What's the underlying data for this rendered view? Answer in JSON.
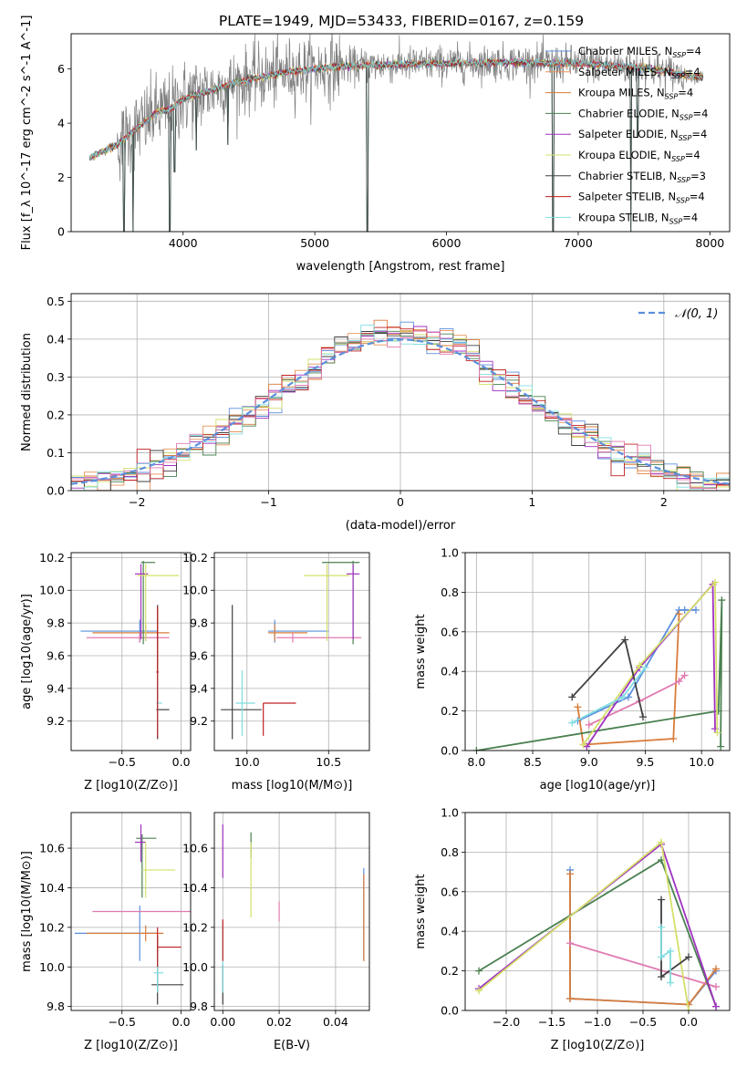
{
  "figure_title": "PLATE=1949, MJD=53433, FIBERID=0167, z=0.159",
  "colors": {
    "Chabrier MILES": "#5b8fdc",
    "Salpeter MILES": "#e8935a",
    "Kroupa MILES": "#d97c3a",
    "Chabrier ELODIE": "#4a8050",
    "Salpeter ELODIE": "#a032c0",
    "Kroupa ELODIE": "#d4e06a",
    "Chabrier STELIB": "#404040",
    "Salpeter STELIB": "#c02020",
    "Kroupa STELIB": "#80dde0",
    "Pink": "#e07ab0",
    "gauss": "#5b8fdc"
  },
  "chart_data": [
    {
      "id": "spectrum",
      "type": "line",
      "title": "PLATE=1949, MJD=53433, FIBERID=0167, z=0.159",
      "xlabel": "wavelength [Angstrom, rest frame]",
      "ylabel": "Flux [f_λ 10^-17 erg cm^-2 s^-1 A^-1]",
      "xlim": [
        3150,
        8150
      ],
      "ylim": [
        0,
        7.3
      ],
      "xticks": [
        4000,
        5000,
        6000,
        7000,
        8000
      ],
      "yticks": [
        0,
        2,
        4,
        6
      ],
      "legend_position": "right",
      "grid": false,
      "legend": [
        {
          "label": "Chabrier MILES, N",
          "sub": "SSP",
          "tail": "=4",
          "key": "Chabrier MILES"
        },
        {
          "label": "Salpeter MILES, N",
          "sub": "SSP",
          "tail": "=4",
          "key": "Salpeter MILES"
        },
        {
          "label": "Kroupa MILES, N",
          "sub": "SSP",
          "tail": "=4",
          "key": "Kroupa MILES"
        },
        {
          "label": "Chabrier ELODIE, N",
          "sub": "SSP",
          "tail": "=4",
          "key": "Chabrier ELODIE"
        },
        {
          "label": "Salpeter ELODIE, N",
          "sub": "SSP",
          "tail": "=4",
          "key": "Salpeter ELODIE"
        },
        {
          "label": "Kroupa ELODIE, N",
          "sub": "SSP",
          "tail": "=4",
          "key": "Kroupa ELODIE"
        },
        {
          "label": "Chabrier STELIB, N",
          "sub": "SSP",
          "tail": "=3",
          "key": "Chabrier STELIB"
        },
        {
          "label": "Salpeter STELIB, N",
          "sub": "SSP",
          "tail": "=4",
          "key": "Salpeter STELIB"
        },
        {
          "label": "Kroupa STELIB, N",
          "sub": "SSP",
          "tail": "=4",
          "key": "Kroupa STELIB"
        }
      ],
      "continuum": [
        [
          3290,
          2.7
        ],
        [
          3400,
          3.0
        ],
        [
          3500,
          3.2
        ],
        [
          3600,
          3.6
        ],
        [
          3700,
          4.0
        ],
        [
          3800,
          4.4
        ],
        [
          3900,
          4.5
        ],
        [
          4000,
          4.9
        ],
        [
          4200,
          5.2
        ],
        [
          4400,
          5.5
        ],
        [
          4600,
          5.7
        ],
        [
          4800,
          5.9
        ],
        [
          5000,
          6.0
        ],
        [
          5200,
          6.1
        ],
        [
          5500,
          6.15
        ],
        [
          6000,
          6.2
        ],
        [
          6500,
          6.25
        ],
        [
          7000,
          6.2
        ],
        [
          7500,
          6.05
        ],
        [
          7900,
          5.7
        ]
      ],
      "dips": [
        [
          3550,
          0.0
        ],
        [
          3620,
          0.0
        ],
        [
          3900,
          0.0
        ],
        [
          3935,
          2.2
        ],
        [
          4100,
          3.0
        ],
        [
          4340,
          3.2
        ],
        [
          5400,
          0.0
        ],
        [
          6810,
          0.0
        ],
        [
          7400,
          0.0
        ],
        [
          7450,
          3.5
        ]
      ]
    },
    {
      "id": "residuals",
      "type": "step",
      "xlabel": "(data-model)/error",
      "ylabel": "Normed distribution",
      "xlim": [
        -2.5,
        2.5
      ],
      "ylim": [
        0,
        0.52
      ],
      "xticks": [
        -2,
        -1,
        0,
        1,
        2
      ],
      "yticks": [
        0.0,
        0.1,
        0.2,
        0.3,
        0.4,
        0.5
      ],
      "grid": true,
      "legend_position": "top-right",
      "legend_label": "𝒩(0, 1)",
      "bin_width": 0.1
    },
    {
      "id": "age-vs-Z",
      "type": "errorbar",
      "xlabel": "Z [log10(Z/Z⊙)]",
      "ylabel": "age  [log10(age/yr)]",
      "xlim": [
        -0.93,
        0.08
      ],
      "ylim": [
        9.02,
        10.23
      ],
      "xticks": [
        -0.5,
        0.0
      ],
      "yticks": [
        9.2,
        9.4,
        9.6,
        9.8,
        10.0,
        10.2
      ],
      "grid": true,
      "points": [
        {
          "key": "Chabrier MILES",
          "x": -0.35,
          "xerr": [
            0.5,
            0.15
          ],
          "y": 9.75,
          "yerr": [
            0.07,
            0.07
          ]
        },
        {
          "key": "Kroupa MILES",
          "x": -0.3,
          "xerr": [
            0.45,
            0.2
          ],
          "y": 9.74,
          "yerr": [
            0.05,
            0.05
          ]
        },
        {
          "key": "Pink",
          "x": -0.35,
          "xerr": [
            0.45,
            0.25
          ],
          "y": 9.71,
          "yerr": [
            0.03,
            0.03
          ]
        },
        {
          "key": "Chabrier ELODIE",
          "x": -0.32,
          "xerr": [
            0.02,
            0.1
          ],
          "y": 10.17,
          "yerr": [
            0.5,
            0.01
          ]
        },
        {
          "key": "Salpeter ELODIE",
          "x": -0.34,
          "xerr": [
            0.05,
            0.06
          ],
          "y": 10.1,
          "yerr": [
            0.4,
            0.06
          ]
        },
        {
          "key": "Kroupa ELODIE",
          "x": -0.3,
          "xerr": [
            0.07,
            0.28
          ],
          "y": 10.09,
          "yerr": [
            0.4,
            0.07
          ]
        },
        {
          "key": "Chabrier STELIB",
          "x": -0.2,
          "xerr": [
            0.01,
            0.1
          ],
          "y": 9.27,
          "yerr": [
            0.18,
            0.64
          ]
        },
        {
          "key": "Kroupa STELIB",
          "x": -0.2,
          "xerr": [
            0.01,
            0.04
          ],
          "y": 9.31,
          "yerr": [
            0.2,
            0.2
          ]
        },
        {
          "key": "Salpeter STELIB",
          "x": -0.2,
          "xerr": [
            0.01,
            0.01
          ],
          "y": 9.5,
          "yerr": [
            0.4,
            0.4
          ]
        }
      ]
    },
    {
      "id": "age-vs-mass",
      "type": "errorbar",
      "xlabel": "mass [log10(M/M⊙)]",
      "ylabel": "",
      "xlim": [
        9.8,
        10.75
      ],
      "ylim": [
        9.02,
        10.23
      ],
      "xticks": [
        10.0,
        10.5
      ],
      "yticks": [
        9.2,
        9.4,
        9.6,
        9.8,
        10.0,
        10.2
      ],
      "grid": true,
      "points": [
        {
          "key": "Chabrier MILES",
          "x": 10.17,
          "xerr": [
            0.04,
            0.33
          ],
          "y": 9.75,
          "yerr": [
            0.07,
            0.07
          ]
        },
        {
          "key": "Kroupa MILES",
          "x": 10.17,
          "xerr": [
            0.04,
            0.2
          ],
          "y": 9.74,
          "yerr": [
            0.05,
            0.05
          ]
        },
        {
          "key": "Pink",
          "x": 10.28,
          "xerr": [
            0.1,
            0.42
          ],
          "y": 9.71,
          "yerr": [
            0.03,
            0.03
          ]
        },
        {
          "key": "Chabrier ELODIE",
          "x": 10.65,
          "xerr": [
            0.19,
            0.04
          ],
          "y": 10.17,
          "yerr": [
            0.5,
            0.01
          ]
        },
        {
          "key": "Salpeter ELODIE",
          "x": 10.65,
          "xerr": [
            0.04,
            0.04
          ],
          "y": 10.1,
          "yerr": [
            0.4,
            0.06
          ]
        },
        {
          "key": "Kroupa ELODIE",
          "x": 10.49,
          "xerr": [
            0.14,
            0.14
          ],
          "y": 10.09,
          "yerr": [
            0.4,
            0.07
          ]
        },
        {
          "key": "Chabrier STELIB",
          "x": 9.91,
          "xerr": [
            0.07,
            0.18
          ],
          "y": 9.27,
          "yerr": [
            0.18,
            0.64
          ]
        },
        {
          "key": "Kroupa STELIB",
          "x": 9.97,
          "xerr": [
            0.04,
            0.08
          ],
          "y": 9.31,
          "yerr": [
            0.2,
            0.2
          ]
        },
        {
          "key": "Salpeter STELIB",
          "x": 10.1,
          "xerr": [
            0.0,
            0.2
          ],
          "y": 9.31,
          "yerr": [
            0.2,
            0.0
          ]
        }
      ]
    },
    {
      "id": "mass-weight-vs-age",
      "type": "line",
      "xlabel": "age  [log10(age/yr)]",
      "ylabel": "mass weight",
      "xlim": [
        7.9,
        10.25
      ],
      "ylim": [
        0,
        1
      ],
      "xticks": [
        8.0,
        8.5,
        9.0,
        9.5,
        10.0
      ],
      "yticks": [
        0.0,
        0.2,
        0.4,
        0.6,
        0.8,
        1.0
      ],
      "grid": true,
      "series": [
        {
          "key": "Chabrier MILES",
          "x": [
            8.9,
            9.35,
            9.8,
            9.85,
            9.95
          ],
          "y": [
            0.15,
            0.27,
            0.71,
            0.71,
            0.71
          ]
        },
        {
          "key": "Kroupa MILES",
          "x": [
            8.9,
            8.95,
            9.75,
            9.8
          ],
          "y": [
            0.22,
            0.03,
            0.06,
            0.69
          ]
        },
        {
          "key": "Pink",
          "x": [
            9.0,
            9.45,
            9.8,
            9.85
          ],
          "y": [
            0.13,
            0.25,
            0.35,
            0.38
          ]
        },
        {
          "key": "Chabrier ELODIE",
          "x": [
            8.0,
            10.15,
            10.18,
            10.17
          ],
          "y": [
            0.0,
            0.2,
            0.76,
            0.02
          ]
        },
        {
          "key": "Salpeter ELODIE",
          "x": [
            8.98,
            9.45,
            10.1,
            10.12
          ],
          "y": [
            0.02,
            0.42,
            0.84,
            0.11
          ]
        },
        {
          "key": "Kroupa ELODIE",
          "x": [
            8.95,
            9.45,
            10.12,
            10.14
          ],
          "y": [
            0.03,
            0.43,
            0.85,
            0.09
          ]
        },
        {
          "key": "Chabrier STELIB",
          "x": [
            8.85,
            9.32,
            9.48
          ],
          "y": [
            0.27,
            0.56,
            0.17
          ]
        },
        {
          "key": "Kroupa STELIB",
          "x": [
            8.85,
            9.3,
            9.5
          ],
          "y": [
            0.14,
            0.27,
            0.42
          ]
        }
      ]
    },
    {
      "id": "mass-vs-Z",
      "type": "errorbar",
      "xlabel": "Z [log10(Z/Z⊙)]",
      "ylabel": "mass [log10(M/M⊙)]",
      "xlim": [
        -0.93,
        0.08
      ],
      "ylim": [
        9.78,
        10.78
      ],
      "xticks": [
        -0.5,
        0.0
      ],
      "yticks": [
        9.8,
        10.0,
        10.2,
        10.4,
        10.6
      ],
      "grid": true,
      "points": [
        {
          "key": "Chabrier MILES",
          "x": -0.35,
          "xerr": [
            0.55,
            0.15
          ],
          "y": 10.17,
          "yerr": [
            0.14,
            0.14
          ]
        },
        {
          "key": "Kroupa MILES",
          "x": -0.3,
          "xerr": [
            0.5,
            0.15
          ],
          "y": 10.17,
          "yerr": [
            0.04,
            0.04
          ]
        },
        {
          "key": "Pink",
          "x": -0.35,
          "xerr": [
            0.4,
            0.45
          ],
          "y": 10.28,
          "yerr": [
            0.0,
            0.0
          ]
        },
        {
          "key": "Chabrier ELODIE",
          "x": -0.33,
          "xerr": [
            0.05,
            0.12
          ],
          "y": 10.65,
          "yerr": [
            0.3,
            0.02
          ]
        },
        {
          "key": "Salpeter ELODIE",
          "x": -0.34,
          "xerr": [
            0.05,
            0.04
          ],
          "y": 10.63,
          "yerr": [
            0.1,
            0.09
          ]
        },
        {
          "key": "Kroupa ELODIE",
          "x": -0.3,
          "xerr": [
            0.03,
            0.25
          ],
          "y": 10.49,
          "yerr": [
            0.14,
            0.14
          ]
        },
        {
          "key": "Chabrier STELIB",
          "x": -0.2,
          "xerr": [
            0.05,
            0.22
          ],
          "y": 9.91,
          "yerr": [
            0.1,
            0.25
          ]
        },
        {
          "key": "Kroupa STELIB",
          "x": -0.2,
          "xerr": [
            0.03,
            0.05
          ],
          "y": 9.97,
          "yerr": [
            0.1,
            0.1
          ]
        },
        {
          "key": "Salpeter STELIB",
          "x": -0.2,
          "xerr": [
            0.0,
            0.2
          ],
          "y": 10.1,
          "yerr": [
            0.1,
            0.1
          ]
        }
      ]
    },
    {
      "id": "mass-vs-ebv",
      "type": "errorbar",
      "xlabel": "E(B-V)",
      "ylabel": "",
      "xlim": [
        -0.003,
        0.052
      ],
      "ylim": [
        9.78,
        10.78
      ],
      "xticks": [
        0.0,
        0.02,
        0.04
      ],
      "yticks": [
        9.8,
        10.0,
        10.2,
        10.4,
        10.6
      ],
      "grid": true,
      "points": [
        {
          "key": "Chabrier MILES",
          "x": 0.05,
          "y": 10.17,
          "yerr": [
            0.14,
            0.33
          ]
        },
        {
          "key": "Kroupa MILES",
          "x": 0.05,
          "y": 10.17,
          "yerr": [
            0.14,
            0.3
          ]
        },
        {
          "key": "Pink",
          "x": 0.02,
          "y": 10.28,
          "yerr": [
            0.05,
            0.05
          ]
        },
        {
          "key": "Chabrier ELODIE",
          "x": 0.01,
          "y": 10.65,
          "yerr": [
            0.1,
            0.03
          ]
        },
        {
          "key": "Salpeter ELODIE",
          "x": 0.0,
          "y": 10.63,
          "yerr": [
            0.18,
            0.09
          ]
        },
        {
          "key": "Kroupa ELODIE",
          "x": 0.01,
          "y": 10.49,
          "yerr": [
            0.24,
            0.14
          ]
        },
        {
          "key": "Chabrier STELIB",
          "x": 0.0,
          "y": 9.91,
          "yerr": [
            0.1,
            0.1
          ]
        },
        {
          "key": "Kroupa STELIB",
          "x": 0.0,
          "y": 9.97,
          "yerr": [
            0.1,
            0.25
          ]
        },
        {
          "key": "Salpeter STELIB",
          "x": 0.0,
          "y": 10.1,
          "yerr": [
            0.07,
            0.14
          ]
        }
      ]
    },
    {
      "id": "mass-weight-vs-Z",
      "type": "line",
      "xlabel": "Z [log10(Z/Z⊙)]",
      "ylabel": "mass weight",
      "xlim": [
        -2.45,
        0.45
      ],
      "ylim": [
        0,
        1
      ],
      "xticks": [
        -2.0,
        -1.5,
        -1.0,
        -0.5,
        0.0
      ],
      "yticks": [
        0.0,
        0.2,
        0.4,
        0.6,
        0.8,
        1.0
      ],
      "grid": true,
      "series": [
        {
          "key": "Chabrier MILES",
          "x": [
            -1.3,
            -1.3,
            0.0,
            0.3
          ],
          "y": [
            0.71,
            0.06,
            0.03,
            0.2
          ]
        },
        {
          "key": "Kroupa MILES",
          "x": [
            -1.3,
            -1.3,
            0.0,
            0.3
          ],
          "y": [
            0.69,
            0.06,
            0.03,
            0.21
          ]
        },
        {
          "key": "Pink",
          "x": [
            -1.3,
            0.3
          ],
          "y": [
            0.34,
            0.12
          ]
        },
        {
          "key": "Chabrier ELODIE",
          "x": [
            -2.3,
            -0.3,
            0.3
          ],
          "y": [
            0.2,
            0.76,
            0.02
          ]
        },
        {
          "key": "Salpeter ELODIE",
          "x": [
            -2.3,
            -0.3,
            0.3
          ],
          "y": [
            0.11,
            0.84,
            0.02
          ]
        },
        {
          "key": "Kroupa ELODIE",
          "x": [
            -2.3,
            -0.3,
            0.0
          ],
          "y": [
            0.1,
            0.85,
            0.0
          ]
        },
        {
          "key": "Chabrier STELIB",
          "x": [
            -0.3,
            -0.3,
            0.0
          ],
          "y": [
            0.56,
            0.17,
            0.27
          ]
        },
        {
          "key": "Kroupa STELIB",
          "x": [
            -0.3,
            -0.3,
            -0.2,
            -0.2
          ],
          "y": [
            0.42,
            0.27,
            0.3,
            0.14
          ]
        }
      ]
    }
  ]
}
